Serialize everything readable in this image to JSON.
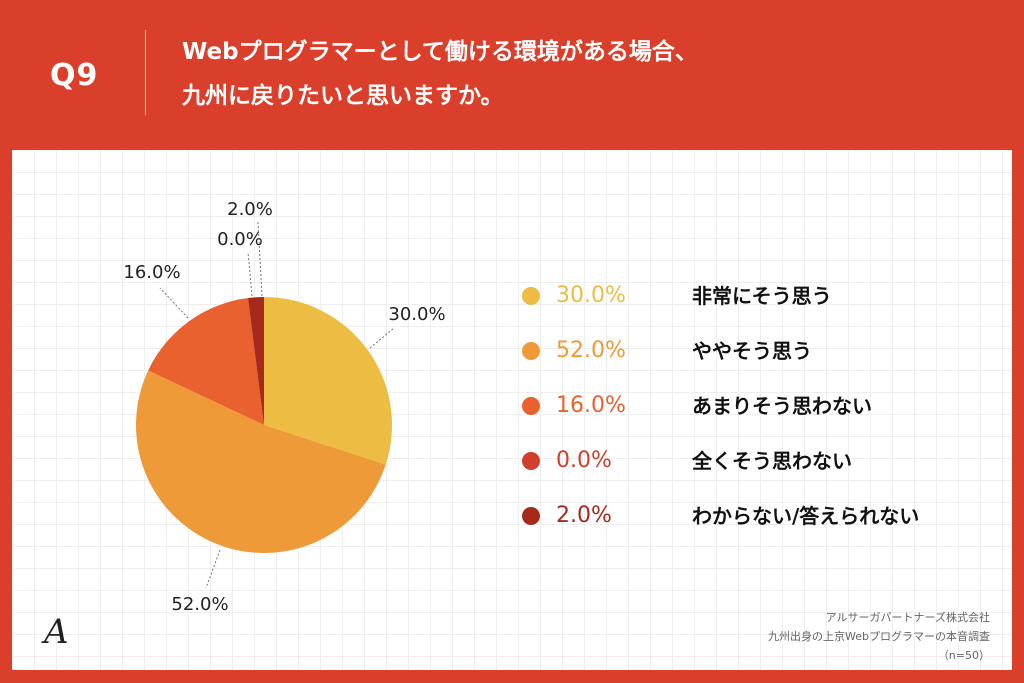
{
  "header": {
    "question_label": "Q9",
    "title_line1": "Webプログラマーとして働ける環境がある場合、",
    "title_line2": "九州に戻りたいと思いますか。"
  },
  "chart_data": {
    "type": "pie",
    "categories": [
      "非常にそう思う",
      "ややそう思う",
      "あまりそう思わない",
      "全くそう思わない",
      "わからない/答えられない"
    ],
    "values": [
      30.0,
      52.0,
      16.0,
      0.0,
      2.0
    ],
    "value_labels": [
      "30.0%",
      "52.0%",
      "16.0%",
      "0.0%",
      "2.0%"
    ],
    "colors": [
      "#ecbd42",
      "#ef9a38",
      "#e8612e",
      "#cf3f2c",
      "#a52a1c"
    ],
    "legend_position": "right"
  },
  "source": {
    "company": "アルサーガパートナーズ株式会社",
    "survey": "九州出身の上京Webプログラマーの本音調査",
    "sample": "（n=50）"
  },
  "logo": {
    "glyph": "A",
    "icon": "company-logo-icon"
  }
}
